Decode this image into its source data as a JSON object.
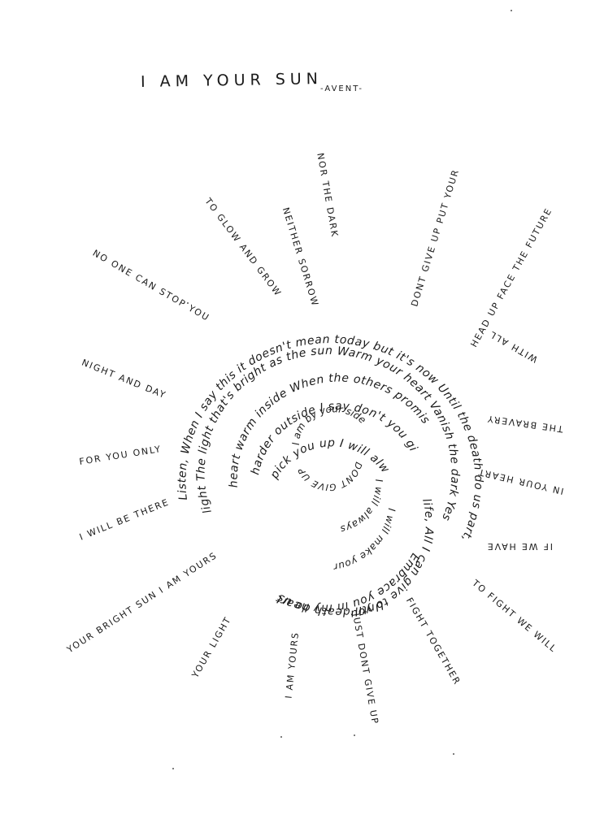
{
  "title": "I AM YOUR SUN",
  "author": "-AVENT-",
  "center": "I am by your side",
  "spiral_rings": [
    "Listen, When I say this it doesn't mean today but it's now Until the death do us part,",
    "light The light that's bright as the sun Warm your heart Vanish the dark Yes",
    "heart warm inside When the others promise you the stars Don't",
    "harder outside I say don't you give up I will hold you up",
    "pick you up I will always be your light When it's getting",
    "DONT GIVE UP I will",
    "I will always",
    "I will make your",
    "life, All I can give to you",
    "Embrace you in my heart",
    "Until death do us"
  ],
  "rays": [
    "NO ONE CAN STOP YOU",
    "TO GLOW AND GROW",
    "NEITHER SORROW",
    "NOR THE DARK",
    "DONT GIVE UP PUT YOUR",
    "HEAD UP FACE THE FUTURE",
    "WITH ALL",
    "THE BRAVERY",
    "IN YOUR HEART",
    "IF WE HAVE",
    "TO FIGHT WE WILL",
    "FIGHT TOGETHER",
    "JUST DONT GIVE UP",
    "I AM YOURS",
    "YOUR LIGHT",
    "YOUR BRIGHT SUN I AM YOURS",
    "I WILL BE THERE",
    "FOR YOU ONLY",
    "NIGHT AND DAY"
  ]
}
